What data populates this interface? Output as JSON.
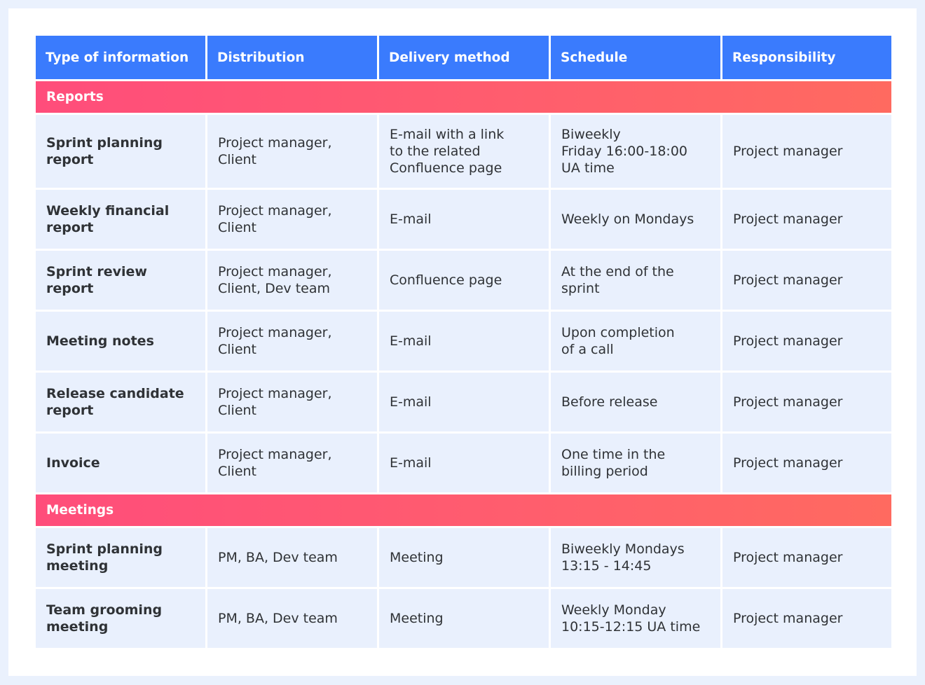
{
  "header": [
    "Type of information",
    "Distribution",
    "Delivery method",
    "Schedule",
    "Responsibility"
  ],
  "sections": [
    {
      "title": "Reports",
      "rows": [
        [
          "Sprint planning\nreport",
          "Project manager,\nClient",
          "E-mail with a link\nto the related\nConfluence page",
          "Biweekly\nFriday 16:00-18:00\nUA time",
          "Project manager"
        ],
        [
          "Weekly financial\nreport",
          "Project manager,\nClient",
          "E-mail",
          "Weekly on Mondays",
          "Project manager"
        ],
        [
          "Sprint review\nreport",
          "Project manager,\nClient, Dev team",
          "Confluence page",
          "At the end of the\nsprint",
          "Project manager"
        ],
        [
          "Meeting notes",
          "Project manager,\nClient",
          "E-mail",
          "Upon completion\nof a call",
          "Project manager"
        ],
        [
          "Release candidate\nreport",
          "Project manager,\nClient",
          "E-mail",
          "Before release",
          "Project manager"
        ],
        [
          "Invoice",
          "Project manager,\nClient",
          "E-mail",
          "One time in the\nbilling period",
          "Project manager"
        ]
      ]
    },
    {
      "title": "Meetings",
      "rows": [
        [
          "Sprint planning\nmeeting",
          "PM, BA, Dev team",
          "Meeting",
          "Biweekly Mondays\n13:15 - 14:45",
          "Project manager"
        ],
        [
          "Team grooming\nmeeting",
          "PM, BA, Dev team",
          "Meeting",
          "Weekly Monday\n10:15-12:15 UA time",
          "Project manager"
        ]
      ]
    }
  ]
}
